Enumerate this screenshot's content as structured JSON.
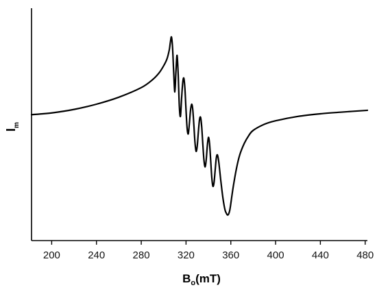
{
  "chart_data": {
    "type": "line",
    "title": "",
    "xlabel": {
      "main": "B",
      "sub": "o",
      "rest": "(mT)"
    },
    "ylabel": {
      "main": "I",
      "sub": "m"
    },
    "xlim": [
      182,
      482
    ],
    "ylim": [
      -1.2,
      1.0
    ],
    "x_ticks": [
      200,
      240,
      280,
      320,
      360,
      400,
      440,
      480
    ],
    "grid": false,
    "legend": "none",
    "line_color": "#000000",
    "series": [
      {
        "x": [
          182,
          200,
          220,
          240,
          260,
          280,
          290,
          296,
          300,
          303,
          305,
          306,
          307,
          308,
          309,
          310,
          311,
          312,
          313,
          314,
          315,
          316,
          317,
          318,
          319,
          320,
          321,
          322,
          323,
          324,
          325,
          326,
          327,
          328,
          329,
          330,
          331,
          332,
          333,
          334,
          335,
          336,
          337,
          338,
          339,
          340,
          341,
          342,
          343,
          344,
          345,
          346,
          347,
          348,
          349,
          350,
          351,
          352,
          353,
          354,
          355,
          356,
          357,
          358,
          359,
          360,
          362,
          365,
          368,
          372,
          376,
          380,
          390,
          400,
          420,
          440,
          460,
          482
        ],
        "y": [
          0.0,
          0.02,
          0.06,
          0.12,
          0.2,
          0.31,
          0.4,
          0.48,
          0.56,
          0.64,
          0.74,
          0.83,
          0.89,
          0.76,
          0.48,
          0.26,
          0.5,
          0.68,
          0.46,
          0.1,
          -0.02,
          0.18,
          0.36,
          0.42,
          0.3,
          0.05,
          -0.16,
          -0.22,
          -0.1,
          0.05,
          0.12,
          0.06,
          -0.12,
          -0.32,
          -0.42,
          -0.36,
          -0.2,
          -0.06,
          -0.03,
          -0.14,
          -0.34,
          -0.52,
          -0.6,
          -0.52,
          -0.36,
          -0.26,
          -0.33,
          -0.52,
          -0.72,
          -0.82,
          -0.78,
          -0.64,
          -0.5,
          -0.46,
          -0.52,
          -0.63,
          -0.75,
          -0.86,
          -0.96,
          -1.04,
          -1.1,
          -1.13,
          -1.15,
          -1.14,
          -1.1,
          -1.02,
          -0.84,
          -0.62,
          -0.46,
          -0.33,
          -0.24,
          -0.18,
          -0.11,
          -0.07,
          -0.02,
          0.01,
          0.03,
          0.05
        ]
      }
    ]
  }
}
